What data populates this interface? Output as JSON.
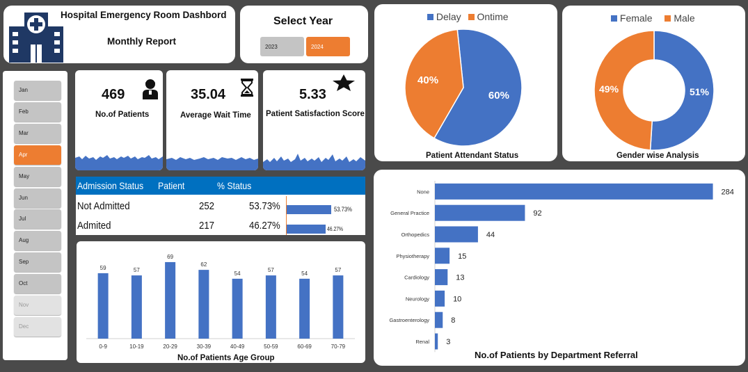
{
  "header": {
    "title": "Hospital Emergency Room Dashbord",
    "subtitle": "Monthly Report"
  },
  "year_select": {
    "title": "Select Year",
    "options": [
      "2023",
      "2024"
    ],
    "selected": "2024"
  },
  "months": [
    "Jan",
    "Feb",
    "Mar",
    "Apr",
    "May",
    "Jun",
    "Jul",
    "Aug",
    "Sep",
    "Oct",
    "Nov",
    "Dec"
  ],
  "selected_month": "Apr",
  "kpis": {
    "patients": {
      "value": "469",
      "label": "No.of Patients",
      "icon": "person-icon"
    },
    "wait_time": {
      "value": "35.04",
      "label": "Average Wait Time",
      "icon": "hourglass-icon"
    },
    "satisfaction": {
      "value": "5.33",
      "label": "Patient Satisfaction Score",
      "icon": "star-icon"
    }
  },
  "admission": {
    "headers": [
      "Admission Status",
      "Patient",
      "% Status"
    ],
    "rows": [
      {
        "status": "Not Admitted",
        "patients": "252",
        "percent": "53.73%",
        "bar_label": "53.73%",
        "fraction": 0.5373
      },
      {
        "status": "Admited",
        "patients": "217",
        "percent": "46.27%",
        "bar_label": "46.27%",
        "fraction": 0.4627
      }
    ]
  },
  "colors": {
    "blue": "#4472c4",
    "orange": "#ed7d31",
    "header_blue": "#0070c0",
    "dark_navy": "#1f3864"
  },
  "attendant_chart": {
    "title": "Patient Attendant Status",
    "legend": [
      "Delay",
      "Ontime"
    ]
  },
  "gender_chart": {
    "title": "Gender wise Analysis",
    "legend": [
      "Female",
      "Male"
    ]
  },
  "age_chart": {
    "title": "No.of Patients Age Group"
  },
  "dept_chart": {
    "title": "No.of Patients by  Department Referral"
  },
  "chart_data": [
    {
      "type": "pie",
      "title": "Patient Attendant Status",
      "categories": [
        "Delay",
        "Ontime"
      ],
      "values": [
        60,
        40
      ],
      "labels": [
        "60%",
        "40%"
      ],
      "legend": "top"
    },
    {
      "type": "pie",
      "subtype": "donut",
      "title": "Gender wise Analysis",
      "categories": [
        "Female",
        "Male"
      ],
      "values": [
        51,
        49
      ],
      "labels": [
        "51%",
        "49%"
      ],
      "legend": "top"
    },
    {
      "type": "bar",
      "title": "No.of Patients Age Group",
      "categories": [
        "0-9",
        "10-19",
        "20-29",
        "30-39",
        "40-49",
        "50-59",
        "60-69",
        "70-79"
      ],
      "values": [
        59,
        57,
        69,
        62,
        54,
        57,
        54,
        57
      ],
      "ylim": [
        0,
        80
      ],
      "grid": false
    },
    {
      "type": "bar",
      "orientation": "horizontal",
      "title": "No.of Patients by  Department Referral",
      "categories": [
        "None",
        "General Practice",
        "Orthopedics",
        "Physiotherapy",
        "Cardiology",
        "Neurology",
        "Gastroenterology",
        "Renal"
      ],
      "values": [
        284,
        92,
        44,
        15,
        13,
        10,
        8,
        3
      ],
      "xlim": [
        0,
        290
      ],
      "grid": false
    }
  ]
}
